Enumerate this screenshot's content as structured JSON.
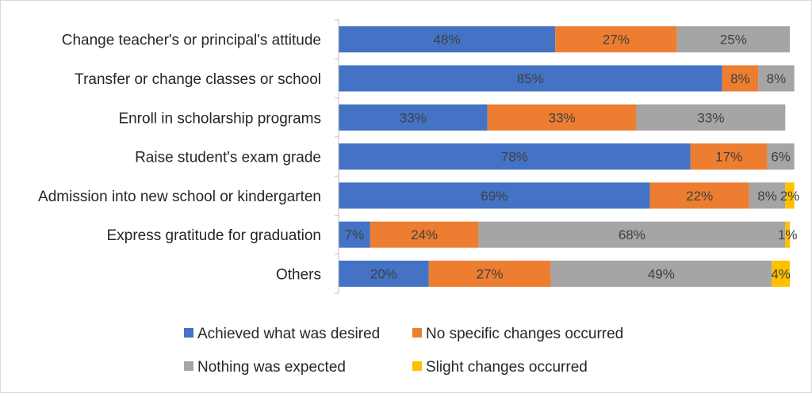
{
  "chart_data": {
    "type": "bar",
    "orientation": "horizontal",
    "stacked": "percent",
    "categories": [
      "Change teacher's or principal's attitude",
      "Transfer or change classes or school",
      "Enroll in scholarship programs",
      "Raise student's exam grade",
      "Admission into new school or kindergarten",
      "Express gratitude for graduation",
      "Others"
    ],
    "series": [
      {
        "name": "Achieved what was desired",
        "color": "#4472C4",
        "values": [
          48,
          85,
          33,
          78,
          69,
          7,
          20
        ],
        "labels": [
          "48%",
          "85%",
          "33%",
          "78%",
          "69%",
          "7%",
          "20%"
        ]
      },
      {
        "name": "No specific changes occurred",
        "color": "#ED7D31",
        "values": [
          27,
          8,
          33,
          17,
          22,
          24,
          27
        ],
        "labels": [
          "27%",
          "8%",
          "33%",
          "17%",
          "22%",
          "24%",
          "27%"
        ]
      },
      {
        "name": "Nothing was expected",
        "color": "#A5A5A5",
        "values": [
          25,
          8,
          33,
          6,
          8,
          68,
          49
        ],
        "labels": [
          "25%",
          "8%",
          "33%",
          "6%",
          "8%",
          "68%",
          "49%"
        ]
      },
      {
        "name": "Slight changes occurred",
        "color": "#FFC000",
        "values": [
          0,
          0,
          0,
          0,
          2,
          1,
          4
        ],
        "labels": [
          "",
          "",
          "",
          "",
          "2%",
          "1%",
          "4%"
        ]
      }
    ],
    "xlim": [
      0,
      100
    ],
    "grid": false,
    "legend_position": "bottom",
    "title": "",
    "xlabel": "",
    "ylabel": ""
  }
}
